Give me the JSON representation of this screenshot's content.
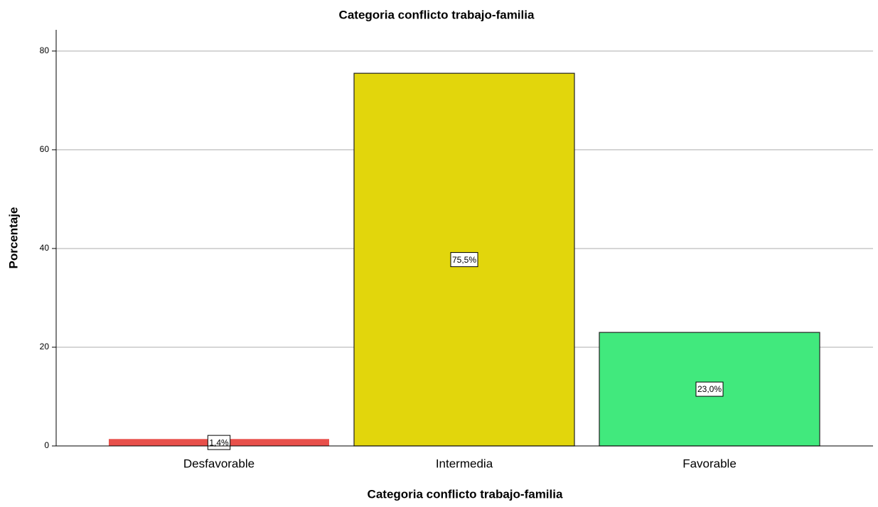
{
  "chart_data": {
    "type": "bar",
    "title": "Categoria conflicto trabajo-familia",
    "x_label": "Categoria conflicto trabajo-familia",
    "y_label": "Porcentaje",
    "categories": [
      "Desfavorable",
      "Intermedia",
      "Favorable"
    ],
    "values": [
      1.4,
      75.5,
      23.0
    ],
    "value_labels": [
      "1,4%",
      "75,5%",
      "23,0%"
    ],
    "colors": [
      "#e8504b",
      "#e2d60c",
      "#41e97d"
    ],
    "ylim": [
      0,
      84.3
    ],
    "yticks": [
      0,
      20,
      40,
      60,
      80
    ],
    "grid": true
  }
}
